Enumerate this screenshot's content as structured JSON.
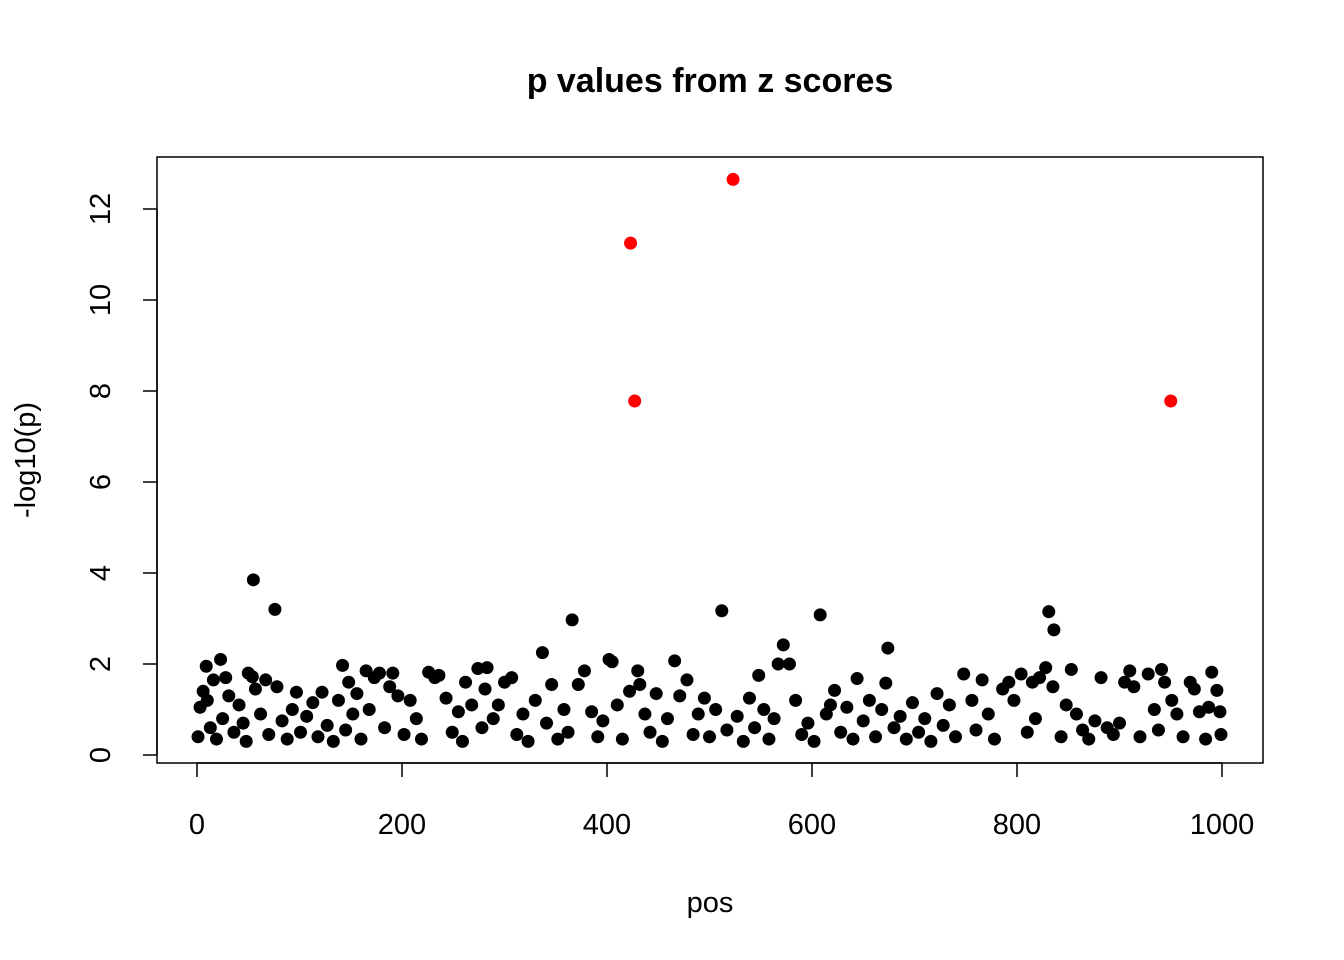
{
  "chart_data": {
    "type": "scatter",
    "title": "p values from z scores",
    "xlabel": "pos",
    "ylabel": "-log10(p)",
    "xlim": [
      0,
      1000
    ],
    "ylim": [
      0,
      12.8
    ],
    "xticks": [
      0,
      200,
      400,
      600,
      800,
      1000
    ],
    "yticks": [
      0,
      2,
      4,
      6,
      8,
      10,
      12
    ],
    "grid": false,
    "legend": "none",
    "colors": {
      "normal": "#000000",
      "highlight": "#ff0000"
    },
    "series": [
      {
        "color": "#000000",
        "points": [
          [
            55,
            3.85
          ],
          [
            76,
            3.2
          ],
          [
            366,
            2.97
          ],
          [
            512,
            3.17
          ],
          [
            608,
            3.08
          ],
          [
            831,
            3.15
          ],
          [
            836,
            2.75
          ],
          [
            337,
            2.25
          ],
          [
            674,
            2.35
          ],
          [
            572,
            2.42
          ],
          [
            9,
            1.95
          ],
          [
            23,
            2.1
          ],
          [
            16,
            1.65
          ],
          [
            28,
            1.7
          ],
          [
            50,
            1.8
          ],
          [
            54,
            1.72
          ],
          [
            57,
            1.45
          ],
          [
            67,
            1.65
          ],
          [
            78,
            1.5
          ],
          [
            97,
            1.38
          ],
          [
            122,
            1.38
          ],
          [
            142,
            1.97
          ],
          [
            148,
            1.6
          ],
          [
            156,
            1.35
          ],
          [
            165,
            1.85
          ],
          [
            173,
            1.7
          ],
          [
            178,
            1.8
          ],
          [
            191,
            1.8
          ],
          [
            188,
            1.5
          ],
          [
            226,
            1.82
          ],
          [
            232,
            1.7
          ],
          [
            236,
            1.75
          ],
          [
            262,
            1.6
          ],
          [
            274,
            1.9
          ],
          [
            283,
            1.92
          ],
          [
            281,
            1.45
          ],
          [
            300,
            1.6
          ],
          [
            307,
            1.7
          ],
          [
            346,
            1.55
          ],
          [
            372,
            1.55
          ],
          [
            378,
            1.85
          ],
          [
            402,
            2.1
          ],
          [
            405,
            2.05
          ],
          [
            422,
            1.4
          ],
          [
            430,
            1.85
          ],
          [
            432,
            1.55
          ],
          [
            466,
            2.07
          ],
          [
            478,
            1.65
          ],
          [
            548,
            1.75
          ],
          [
            567,
            2.0
          ],
          [
            578,
            2.0
          ],
          [
            622,
            1.42
          ],
          [
            644,
            1.68
          ],
          [
            672,
            1.58
          ],
          [
            748,
            1.78
          ],
          [
            766,
            1.65
          ],
          [
            786,
            1.45
          ],
          [
            792,
            1.6
          ],
          [
            804,
            1.78
          ],
          [
            815,
            1.6
          ],
          [
            822,
            1.7
          ],
          [
            828,
            1.92
          ],
          [
            835,
            1.5
          ],
          [
            853,
            1.88
          ],
          [
            882,
            1.7
          ],
          [
            910,
            1.85
          ],
          [
            914,
            1.5
          ],
          [
            928,
            1.78
          ],
          [
            941,
            1.88
          ],
          [
            944,
            1.6
          ],
          [
            951,
            1.2
          ],
          [
            969,
            1.6
          ],
          [
            973,
            1.45
          ],
          [
            990,
            1.82
          ],
          [
            995,
            1.42
          ],
          [
            1,
            0.4
          ],
          [
            3,
            1.05
          ],
          [
            6,
            1.4
          ],
          [
            10,
            1.2
          ],
          [
            13,
            0.6
          ],
          [
            19,
            0.35
          ],
          [
            25,
            0.8
          ],
          [
            31,
            1.3
          ],
          [
            36,
            0.5
          ],
          [
            41,
            1.1
          ],
          [
            45,
            0.7
          ],
          [
            48,
            0.3
          ],
          [
            62,
            0.9
          ],
          [
            70,
            0.45
          ],
          [
            83,
            0.75
          ],
          [
            88,
            0.35
          ],
          [
            93,
            1.0
          ],
          [
            101,
            0.5
          ],
          [
            107,
            0.85
          ],
          [
            113,
            1.15
          ],
          [
            118,
            0.4
          ],
          [
            127,
            0.65
          ],
          [
            133,
            0.3
          ],
          [
            138,
            1.2
          ],
          [
            145,
            0.55
          ],
          [
            152,
            0.9
          ],
          [
            160,
            0.35
          ],
          [
            168,
            1.0
          ],
          [
            183,
            0.6
          ],
          [
            196,
            1.3
          ],
          [
            202,
            0.45
          ],
          [
            208,
            1.2
          ],
          [
            214,
            0.8
          ],
          [
            219,
            0.35
          ],
          [
            243,
            1.25
          ],
          [
            249,
            0.5
          ],
          [
            255,
            0.95
          ],
          [
            259,
            0.3
          ],
          [
            268,
            1.1
          ],
          [
            278,
            0.6
          ],
          [
            289,
            0.8
          ],
          [
            294,
            1.1
          ],
          [
            312,
            0.45
          ],
          [
            318,
            0.9
          ],
          [
            323,
            0.3
          ],
          [
            330,
            1.2
          ],
          [
            341,
            0.7
          ],
          [
            352,
            0.35
          ],
          [
            358,
            1.0
          ],
          [
            362,
            0.5
          ],
          [
            385,
            0.95
          ],
          [
            391,
            0.4
          ],
          [
            396,
            0.75
          ],
          [
            410,
            1.1
          ],
          [
            415,
            0.35
          ],
          [
            437,
            0.9
          ],
          [
            442,
            0.5
          ],
          [
            448,
            1.35
          ],
          [
            454,
            0.3
          ],
          [
            459,
            0.8
          ],
          [
            471,
            1.3
          ],
          [
            484,
            0.45
          ],
          [
            489,
            0.9
          ],
          [
            495,
            1.25
          ],
          [
            500,
            0.4
          ],
          [
            506,
            1.0
          ],
          [
            517,
            0.55
          ],
          [
            527,
            0.85
          ],
          [
            533,
            0.3
          ],
          [
            539,
            1.25
          ],
          [
            544,
            0.6
          ],
          [
            553,
            1.0
          ],
          [
            558,
            0.35
          ],
          [
            563,
            0.8
          ],
          [
            584,
            1.2
          ],
          [
            590,
            0.45
          ],
          [
            596,
            0.7
          ],
          [
            602,
            0.3
          ],
          [
            614,
            0.9
          ],
          [
            618,
            1.1
          ],
          [
            628,
            0.5
          ],
          [
            634,
            1.05
          ],
          [
            640,
            0.35
          ],
          [
            650,
            0.75
          ],
          [
            656,
            1.2
          ],
          [
            662,
            0.4
          ],
          [
            668,
            1.0
          ],
          [
            680,
            0.6
          ],
          [
            686,
            0.85
          ],
          [
            692,
            0.35
          ],
          [
            698,
            1.15
          ],
          [
            704,
            0.5
          ],
          [
            710,
            0.8
          ],
          [
            716,
            0.3
          ],
          [
            722,
            1.35
          ],
          [
            728,
            0.65
          ],
          [
            734,
            1.1
          ],
          [
            740,
            0.4
          ],
          [
            756,
            1.2
          ],
          [
            760,
            0.55
          ],
          [
            772,
            0.9
          ],
          [
            778,
            0.35
          ],
          [
            797,
            1.2
          ],
          [
            810,
            0.5
          ],
          [
            818,
            0.8
          ],
          [
            843,
            0.4
          ],
          [
            848,
            1.1
          ],
          [
            858,
            0.9
          ],
          [
            864,
            0.55
          ],
          [
            870,
            0.35
          ],
          [
            876,
            0.75
          ],
          [
            888,
            0.6
          ],
          [
            894,
            0.45
          ],
          [
            900,
            0.7
          ],
          [
            905,
            1.6
          ],
          [
            920,
            0.4
          ],
          [
            934,
            1.0
          ],
          [
            938,
            0.55
          ],
          [
            956,
            0.9
          ],
          [
            962,
            0.4
          ],
          [
            978,
            0.95
          ],
          [
            984,
            0.35
          ],
          [
            987,
            1.05
          ],
          [
            998,
            0.95
          ],
          [
            999,
            0.45
          ]
        ]
      },
      {
        "color": "#ff0000",
        "points": [
          [
            423,
            11.25
          ],
          [
            427,
            7.78
          ],
          [
            523,
            12.65
          ],
          [
            950,
            7.78
          ]
        ]
      }
    ]
  }
}
